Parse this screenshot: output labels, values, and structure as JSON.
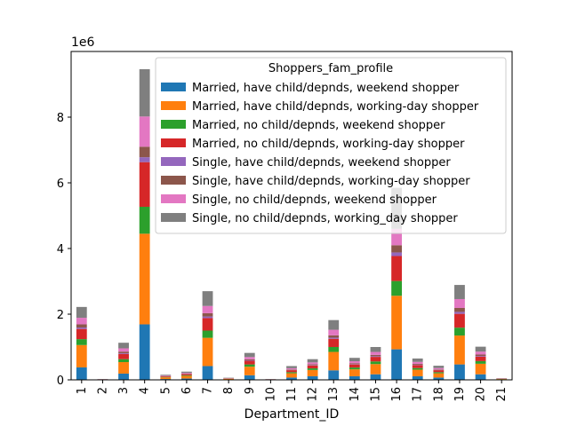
{
  "chart_data": {
    "type": "bar",
    "stacked": true,
    "xlabel": "Department_ID",
    "ylabel": "",
    "y_multiplier_label": "1e6",
    "y_scale": 1000000,
    "ylim": [
      0,
      10000000
    ],
    "yticks": [
      0,
      2000000,
      4000000,
      6000000,
      8000000
    ],
    "ytick_labels": [
      "0",
      "2",
      "4",
      "6",
      "8"
    ],
    "categories": [
      "1",
      "2",
      "3",
      "4",
      "5",
      "6",
      "7",
      "8",
      "9",
      "10",
      "11",
      "12",
      "13",
      "14",
      "15",
      "16",
      "17",
      "18",
      "19",
      "20",
      "21"
    ],
    "legend": {
      "title": "Shoppers_fam_profile",
      "placement": "upper-right"
    },
    "series": [
      {
        "name": "Married, have child/depnds, weekend shopper",
        "color": "#1f77b4",
        "values": [
          380000,
          4000,
          190000,
          1690000,
          25000,
          40000,
          420000,
          10000,
          140000,
          4000,
          70000,
          110000,
          290000,
          110000,
          170000,
          930000,
          110000,
          70000,
          470000,
          170000,
          8000
        ]
      },
      {
        "name": "Married, have child/depnds, working-day shopper",
        "color": "#ff7f0e",
        "values": [
          680000,
          7000,
          350000,
          2760000,
          50000,
          80000,
          860000,
          20000,
          260000,
          8000,
          130000,
          190000,
          560000,
          210000,
          310000,
          1630000,
          200000,
          130000,
          880000,
          320000,
          16000
        ]
      },
      {
        "name": "Married, no child/depnds, weekend shopper",
        "color": "#2ca02c",
        "values": [
          180000,
          2000,
          90000,
          820000,
          13000,
          20000,
          220000,
          5000,
          70000,
          2000,
          35000,
          50000,
          150000,
          55000,
          80000,
          450000,
          50000,
          35000,
          240000,
          80000,
          4000
        ]
      },
      {
        "name": "Married, no child/depnds, working-day shopper",
        "color": "#d62728",
        "values": [
          310000,
          4000,
          160000,
          1360000,
          22000,
          35000,
          380000,
          9000,
          110000,
          3000,
          60000,
          90000,
          250000,
          95000,
          140000,
          760000,
          90000,
          60000,
          420000,
          140000,
          7000
        ]
      },
      {
        "name": "Single, have child/depnds, weekend shopper",
        "color": "#9467bd",
        "values": [
          45000,
          500,
          22000,
          150000,
          3000,
          5000,
          50000,
          1000,
          15000,
          500,
          8000,
          12000,
          35000,
          12000,
          20000,
          110000,
          12000,
          8000,
          60000,
          20000,
          1000
        ]
      },
      {
        "name": "Single, have child/depnds, working-day shopper",
        "color": "#8c564b",
        "values": [
          95000,
          1000,
          48000,
          320000,
          6000,
          10000,
          100000,
          3000,
          30000,
          1000,
          16000,
          24000,
          70000,
          25000,
          40000,
          220000,
          25000,
          16000,
          120000,
          40000,
          2000
        ]
      },
      {
        "name": "Single, no child/depnds, weekend shopper",
        "color": "#e377c2",
        "values": [
          200000,
          2000,
          100000,
          920000,
          14000,
          22000,
          220000,
          6000,
          70000,
          2000,
          35000,
          55000,
          170000,
          60000,
          90000,
          500000,
          60000,
          40000,
          270000,
          90000,
          4000
        ]
      },
      {
        "name": "Single, no child/depnds, working_day shopper",
        "color": "#7f7f7f",
        "values": [
          330000,
          4000,
          170000,
          1440000,
          22000,
          38000,
          450000,
          10000,
          125000,
          3000,
          66000,
          99000,
          295000,
          103000,
          150000,
          1250000,
          103000,
          71000,
          430000,
          150000,
          8000
        ]
      }
    ]
  }
}
